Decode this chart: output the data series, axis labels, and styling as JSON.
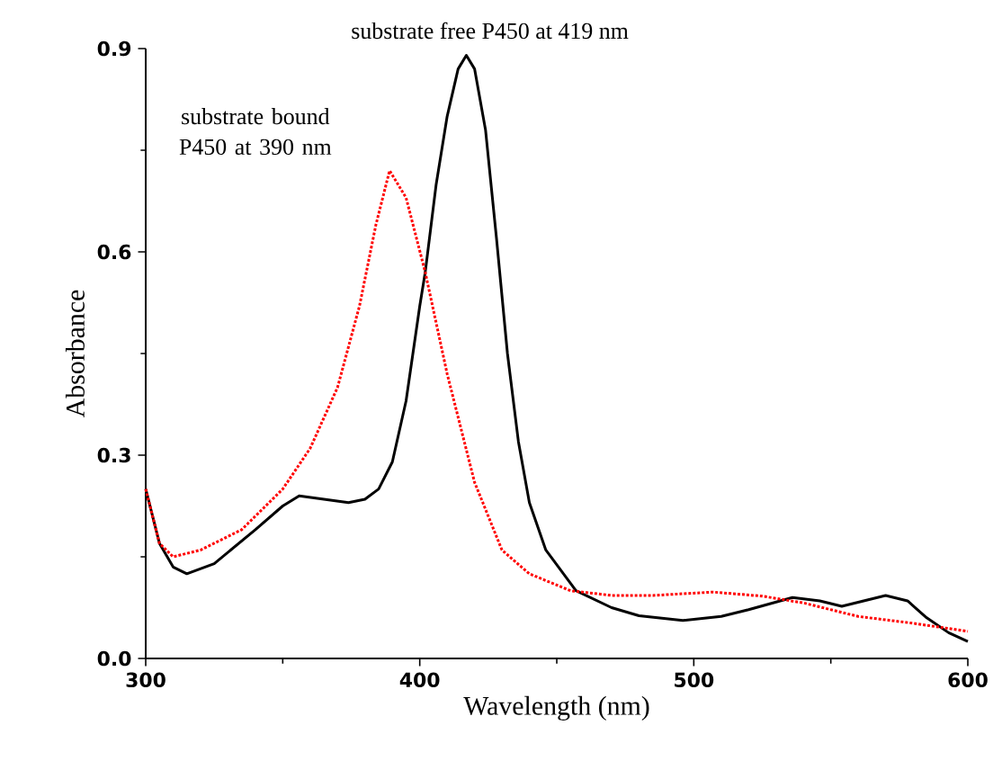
{
  "chart_data": {
    "type": "line",
    "xlabel": "Wavelength (nm)",
    "ylabel": "Absorbance",
    "xlim": [
      300,
      600
    ],
    "ylim": [
      0,
      0.9
    ],
    "xticks": [
      300,
      400,
      500,
      600
    ],
    "yticks": [
      {
        "value": 0,
        "label": "0.0"
      },
      {
        "value": 0.3,
        "label": "0.3"
      },
      {
        "value": 0.6,
        "label": "0.6"
      },
      {
        "value": 0.9,
        "label": "0.9"
      }
    ],
    "marker": "none",
    "series": [
      {
        "color": "#000000",
        "line_style": "solid",
        "x": [
          300,
          305,
          310,
          315,
          325,
          340,
          350,
          356,
          365,
          374,
          380,
          385,
          390,
          395,
          400,
          402,
          406,
          410,
          414,
          417,
          420,
          424,
          428,
          432,
          436,
          440,
          446,
          457,
          470,
          480,
          496,
          510,
          520,
          536,
          546,
          554,
          562,
          570,
          578,
          585,
          593,
          600
        ],
        "values": [
          0.25,
          0.17,
          0.135,
          0.125,
          0.14,
          0.19,
          0.225,
          0.24,
          0.235,
          0.23,
          0.235,
          0.25,
          0.29,
          0.38,
          0.52,
          0.57,
          0.7,
          0.8,
          0.87,
          0.89,
          0.87,
          0.78,
          0.62,
          0.45,
          0.32,
          0.23,
          0.16,
          0.1,
          0.075,
          0.063,
          0.056,
          0.062,
          0.072,
          0.09,
          0.085,
          0.077,
          0.085,
          0.093,
          0.085,
          0.06,
          0.038,
          0.025
        ]
      },
      {
        "color": "#ff0000",
        "line_style": "dotted",
        "x": [
          300,
          305,
          310,
          320,
          335,
          350,
          360,
          370,
          378,
          384,
          389,
          395,
          402,
          410,
          420,
          430,
          440,
          455,
          470,
          485,
          507,
          525,
          540,
          560,
          580,
          600
        ],
        "values": [
          0.25,
          0.17,
          0.15,
          0.16,
          0.19,
          0.25,
          0.31,
          0.4,
          0.52,
          0.64,
          0.72,
          0.68,
          0.57,
          0.42,
          0.26,
          0.16,
          0.125,
          0.1,
          0.093,
          0.093,
          0.098,
          0.092,
          0.082,
          0.062,
          0.052,
          0.04
        ]
      }
    ],
    "annotations": [
      {
        "text": "substrate free P450 at 419 nm",
        "x": 419,
        "y": 0.89
      },
      {
        "text": "substrate bound P450 at 390 nm",
        "x": 390,
        "y": 0.72
      }
    ]
  }
}
